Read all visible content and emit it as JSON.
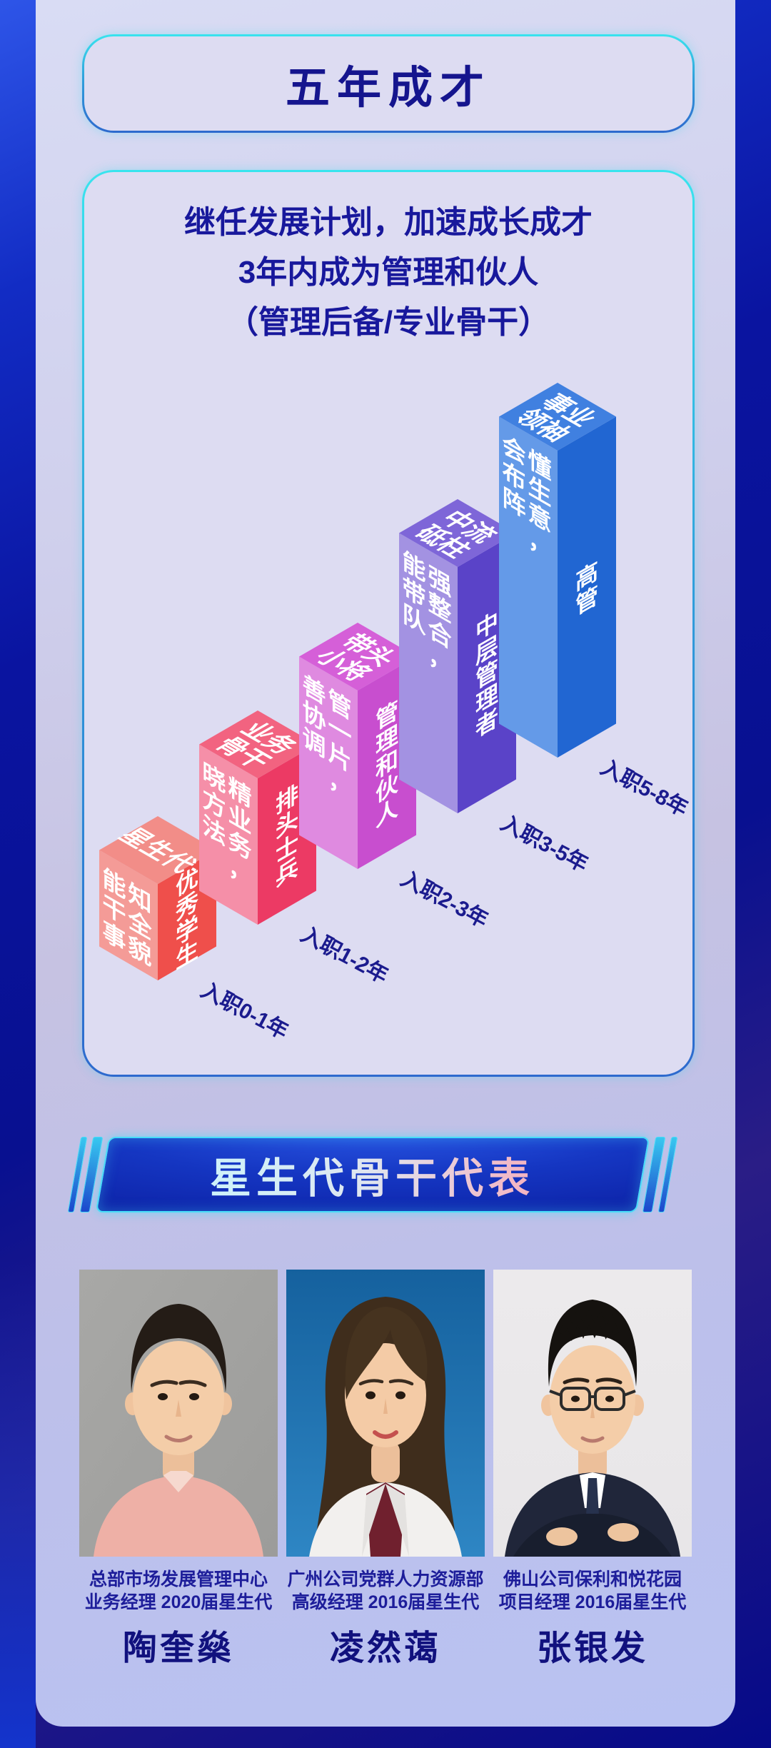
{
  "theme": {
    "accent_cyan": "#38e4ee",
    "accent_blue_border": "#2d6ace",
    "navy_text": "#18189c",
    "page_dark_blue": "#081090",
    "card_bg": "#dddcf2"
  },
  "title_card": {
    "title": "五年成才"
  },
  "intro_card": {
    "lines": [
      "继任发展计划，加速成长成才",
      "3年内成为管理和伙人",
      "（管理后备/专业骨干）"
    ]
  },
  "chart_data": {
    "type": "bar",
    "title": "",
    "subtitle_lines": [
      "继任发展计划，加速成长成才",
      "3年内成为管理和伙人",
      "（管理后备/专业骨干）"
    ],
    "style": "isometric-3d-staircase",
    "categories": [
      "入职0-1年",
      "入职1-2年",
      "入职2-3年",
      "入职3-5年",
      "入职5-8年"
    ],
    "values": [
      135,
      205,
      250,
      345,
      430
    ],
    "bars": [
      {
        "tenure": "入职0-1年",
        "stage_top": "星生代",
        "stage_top_lines": [
          "星生代"
        ],
        "capability": "知全貌 能干事",
        "capability_cols": [
          "知全貌",
          "能干事"
        ],
        "role": "优秀学生",
        "colors": {
          "top": "#f28d88",
          "left": "#f49b97",
          "right": "#ef4f4b"
        }
      },
      {
        "tenure": "入职1-2年",
        "stage_top": "业务骨干",
        "stage_top_lines": [
          "业务",
          "骨干"
        ],
        "capability": "精业务，晓方法",
        "capability_cols": [
          "精业务，",
          "晓方法"
        ],
        "role": "排头士兵",
        "colors": {
          "top": "#f26380",
          "left": "#f58fa8",
          "right": "#ec3a64"
        }
      },
      {
        "tenure": "入职2-3年",
        "stage_top": "带头小将",
        "stage_top_lines": [
          "带头",
          "小将"
        ],
        "capability": "管一片，善协调",
        "capability_cols": [
          "管一片，",
          "善协调"
        ],
        "role": "管理和伙人",
        "colors": {
          "top": "#d55fd8",
          "left": "#df8ae0",
          "right": "#c84ecf"
        }
      },
      {
        "tenure": "入职3-5年",
        "stage_top": "中流砥柱",
        "stage_top_lines": [
          "中流",
          "砥柱"
        ],
        "capability": "强整合，能带队",
        "capability_cols": [
          "强整合，",
          "能带队"
        ],
        "role": "中层管理者",
        "colors": {
          "top": "#7e66d8",
          "left": "#a392e2",
          "right": "#5a43c8"
        }
      },
      {
        "tenure": "入职5-8年",
        "stage_top": "事业领袖",
        "stage_top_lines": [
          "事业",
          "领袖"
        ],
        "capability": "懂生意，会布阵",
        "capability_cols": [
          "懂生意，",
          "会布阵"
        ],
        "role": "高管",
        "colors": {
          "top": "#4080e0",
          "left": "#649ae8",
          "right": "#2166d2"
        }
      }
    ],
    "axis_label_color": "#1b1b8e",
    "legend": "none",
    "grid": false
  },
  "banner": {
    "label": "星生代骨干代表"
  },
  "people": [
    {
      "dept": "总部市场发展管理中心",
      "title_line": "业务经理 2020届星生代",
      "name": "陶奎燊",
      "photo_bg": "#9c9c9a",
      "style": "m1"
    },
    {
      "dept": "广州公司党群人力资源部",
      "title_line": "高级经理 2016届星生代",
      "name": "凌然蔼",
      "photo_bg": "#1a6ba9",
      "style": "f1"
    },
    {
      "dept": "佛山公司保利和悦花园",
      "title_line": "项目经理 2016届星生代",
      "name": "张银发",
      "photo_bg": "#e8e6e8",
      "style": "m2"
    }
  ]
}
